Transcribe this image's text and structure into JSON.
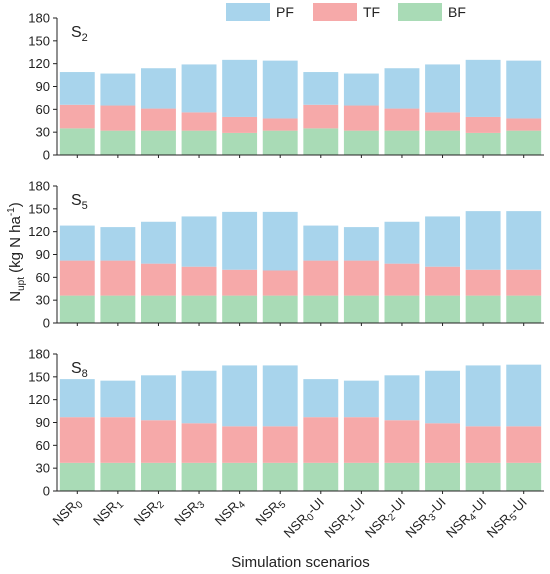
{
  "chart_data": {
    "type": "bar",
    "stacked": true,
    "categories": [
      {
        "base": "NSR",
        "sub": "0",
        "suffix": ""
      },
      {
        "base": "NSR",
        "sub": "1",
        "suffix": ""
      },
      {
        "base": "NSR",
        "sub": "2",
        "suffix": ""
      },
      {
        "base": "NSR",
        "sub": "3",
        "suffix": ""
      },
      {
        "base": "NSR",
        "sub": "4",
        "suffix": ""
      },
      {
        "base": "NSR",
        "sub": "5",
        "suffix": ""
      },
      {
        "base": "NSR",
        "sub": "0",
        "suffix": "-UI"
      },
      {
        "base": "NSR",
        "sub": "1",
        "suffix": "-UI"
      },
      {
        "base": "NSR",
        "sub": "2",
        "suffix": "-UI"
      },
      {
        "base": "NSR",
        "sub": "3",
        "suffix": "-UI"
      },
      {
        "base": "NSR",
        "sub": "4",
        "suffix": "-UI"
      },
      {
        "base": "NSR",
        "sub": "5",
        "suffix": "-UI"
      }
    ],
    "xlabel": "Simulation scenarios",
    "ylabel": {
      "base": "N",
      "sub": "upt",
      "unit_pre": " (kg N ha",
      "sup": "-1",
      "unit_post": ")"
    },
    "ylim": [
      0,
      180
    ],
    "yticks": [
      0,
      30,
      60,
      90,
      120,
      150,
      180
    ],
    "legend": {
      "position": "top-center",
      "entries": [
        "PF",
        "TF",
        "BF"
      ]
    },
    "colors": {
      "PF": "#a8d4ec",
      "TF": "#f6a9a9",
      "BF": "#a9dbb6"
    },
    "panels": [
      {
        "label": {
          "base": "S",
          "sub": "2"
        },
        "series": [
          {
            "name": "BF",
            "values": [
              35,
              32,
              32,
              32,
              29,
              32,
              35,
              32,
              32,
              32,
              29,
              32
            ]
          },
          {
            "name": "TF",
            "values": [
              31,
              33,
              29,
              24,
              21,
              16,
              31,
              33,
              29,
              24,
              21,
              16
            ]
          },
          {
            "name": "PF",
            "values": [
              43,
              42,
              53,
              63,
              75,
              76,
              43,
              42,
              53,
              63,
              75,
              76
            ]
          }
        ]
      },
      {
        "label": {
          "base": "S",
          "sub": "5"
        },
        "series": [
          {
            "name": "BF",
            "values": [
              36,
              36,
              36,
              36,
              36,
              36,
              36,
              36,
              36,
              36,
              36,
              36
            ]
          },
          {
            "name": "TF",
            "values": [
              46,
              46,
              42,
              38,
              34,
              33,
              46,
              46,
              42,
              38,
              34,
              34
            ]
          },
          {
            "name": "PF",
            "values": [
              46,
              44,
              55,
              66,
              76,
              77,
              46,
              44,
              55,
              66,
              77,
              77
            ]
          }
        ]
      },
      {
        "label": {
          "base": "S",
          "sub": "8"
        },
        "series": [
          {
            "name": "BF",
            "values": [
              37,
              37,
              37,
              37,
              37,
              37,
              37,
              37,
              37,
              37,
              37,
              37
            ]
          },
          {
            "name": "TF",
            "values": [
              60,
              60,
              56,
              52,
              48,
              48,
              60,
              60,
              56,
              52,
              48,
              48
            ]
          },
          {
            "name": "PF",
            "values": [
              50,
              48,
              59,
              69,
              80,
              80,
              50,
              48,
              59,
              69,
              80,
              81
            ]
          }
        ]
      }
    ]
  }
}
